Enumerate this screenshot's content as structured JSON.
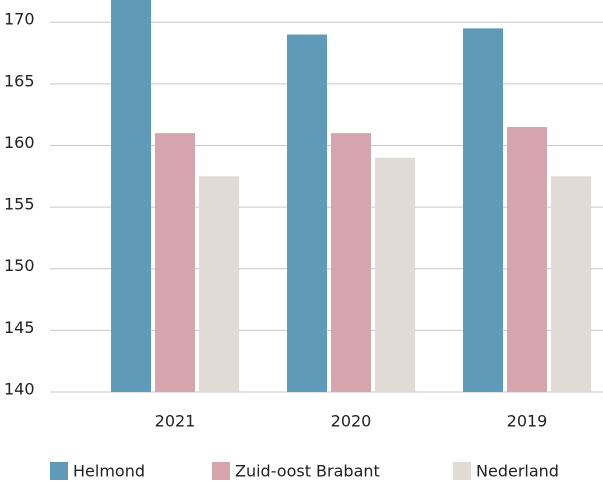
{
  "chart_data": {
    "type": "bar",
    "categories": [
      "2021",
      "2020",
      "2019"
    ],
    "series": [
      {
        "name": "Helmond",
        "color": "#5f9bb9",
        "values": [
          172,
          169,
          169.5
        ]
      },
      {
        "name": "Zuid-oost Brabant",
        "color": "#d5a4ad",
        "values": [
          161,
          161,
          161.5
        ]
      },
      {
        "name": "Nederland",
        "color": "#e0dbd5",
        "values": [
          157.5,
          159,
          157.5
        ]
      }
    ],
    "ylim": [
      140,
      171.8
    ],
    "yticks": [
      140,
      145,
      150,
      155,
      160,
      165,
      170
    ],
    "grid": true,
    "legend": "bottom"
  }
}
